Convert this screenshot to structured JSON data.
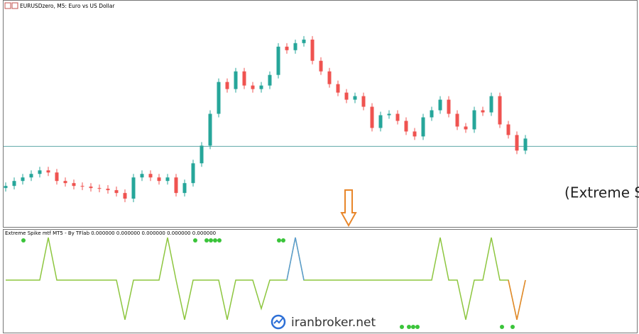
{
  "window_title": "EURUSDzero, M5:  Euro vs US Dollar",
  "annotation": "اندیکاتور اسپایک (Extreme Spike)",
  "watermark": "iranbroker.net",
  "chart_data": [
    {
      "type": "candlestick",
      "o": [
        55,
        58,
        65,
        70,
        75,
        80,
        77,
        65,
        62,
        58,
        57,
        55,
        54,
        52,
        48,
        40,
        70,
        75,
        70,
        65,
        70,
        48,
        62,
        90,
        115,
        160,
        205,
        195,
        220,
        200,
        195,
        200,
        215,
        255,
        250,
        260,
        265,
        235,
        220,
        202,
        190,
        180,
        185,
        170,
        140,
        158,
        160,
        150,
        135,
        128,
        155,
        165,
        180,
        160,
        142,
        138,
        165,
        162,
        185,
        145,
        130,
        108
      ],
      "h": [
        63,
        70,
        75,
        80,
        85,
        85,
        82,
        70,
        67,
        63,
        62,
        60,
        59,
        57,
        53,
        75,
        80,
        80,
        75,
        75,
        75,
        67,
        95,
        120,
        165,
        210,
        210,
        225,
        225,
        205,
        205,
        220,
        260,
        260,
        265,
        270,
        270,
        240,
        225,
        207,
        195,
        190,
        190,
        175,
        163,
        165,
        165,
        155,
        140,
        160,
        170,
        185,
        185,
        165,
        147,
        170,
        170,
        190,
        190,
        150,
        135,
        130
      ],
      "l": [
        50,
        53,
        60,
        65,
        70,
        72,
        60,
        57,
        53,
        52,
        50,
        49,
        47,
        43,
        35,
        35,
        65,
        65,
        60,
        60,
        43,
        43,
        57,
        85,
        110,
        155,
        190,
        190,
        195,
        190,
        190,
        195,
        210,
        245,
        245,
        255,
        230,
        215,
        197,
        185,
        175,
        175,
        165,
        135,
        135,
        153,
        145,
        130,
        123,
        123,
        150,
        160,
        155,
        137,
        133,
        133,
        157,
        157,
        140,
        125,
        103,
        103
      ],
      "c": [
        58,
        65,
        70,
        75,
        80,
        77,
        65,
        62,
        58,
        57,
        55,
        54,
        52,
        48,
        40,
        70,
        75,
        70,
        65,
        70,
        48,
        62,
        90,
        115,
        160,
        205,
        195,
        220,
        200,
        195,
        200,
        215,
        255,
        250,
        260,
        265,
        235,
        220,
        202,
        190,
        180,
        185,
        170,
        140,
        158,
        160,
        150,
        135,
        128,
        155,
        165,
        180,
        160,
        142,
        138,
        165,
        162,
        185,
        145,
        130,
        108,
        125
      ],
      "level": 114,
      "ylim": [
        0,
        320
      ],
      "up_color": "#26a69a",
      "down_color": "#ef5350",
      "level_color": "#5fa8a8"
    },
    {
      "type": "line",
      "title": "Extreme Spike mtf MT5 - By TFlab 0.000000 0.000000 0.000000 0.000000 0.000000",
      "ylim": [
        -1.25,
        1.2
      ],
      "series": [
        {
          "color": "#8dc63f",
          "values": [
            0,
            0,
            0,
            0,
            0,
            1,
            0,
            0,
            0,
            0,
            0,
            0,
            0,
            0,
            -0.93,
            0,
            0,
            0,
            0,
            1,
            0,
            -0.93,
            0,
            0,
            0,
            0,
            -0.93,
            0,
            0,
            0,
            -0.67,
            0,
            0,
            0,
            1,
            0,
            0,
            0,
            0,
            0,
            0,
            0,
            0,
            0,
            0,
            0,
            0,
            0,
            0,
            0,
            0,
            1,
            0,
            0,
            -0.93,
            0,
            0,
            1,
            0,
            0,
            -0.93,
            0
          ]
        },
        {
          "color": "#5b9bd5",
          "values": [
            null,
            null,
            null,
            null,
            null,
            null,
            null,
            null,
            null,
            null,
            null,
            null,
            null,
            null,
            null,
            null,
            null,
            null,
            null,
            null,
            null,
            null,
            null,
            null,
            null,
            null,
            null,
            null,
            null,
            null,
            null,
            null,
            null,
            0,
            1,
            0,
            null,
            null,
            null,
            null,
            null,
            null,
            null,
            null,
            null,
            null,
            null,
            null,
            null,
            null,
            null,
            null,
            null,
            null,
            null,
            null,
            null,
            null,
            null,
            null,
            null,
            null
          ]
        },
        {
          "color": "#e8862a",
          "values": [
            null,
            null,
            null,
            null,
            null,
            null,
            null,
            null,
            null,
            null,
            null,
            null,
            null,
            null,
            null,
            null,
            null,
            null,
            null,
            null,
            null,
            null,
            null,
            null,
            null,
            null,
            null,
            null,
            null,
            null,
            null,
            null,
            null,
            null,
            null,
            null,
            null,
            null,
            null,
            null,
            null,
            null,
            null,
            null,
            null,
            null,
            null,
            null,
            null,
            null,
            null,
            null,
            null,
            null,
            null,
            null,
            null,
            null,
            null,
            0,
            -0.93,
            0
          ]
        }
      ]
    }
  ]
}
